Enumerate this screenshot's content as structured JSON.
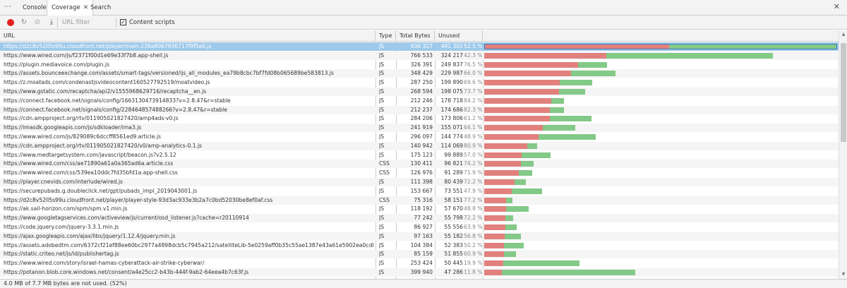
{
  "tabs": {
    "more_label": "⋯",
    "console": "Console",
    "coverage": "Coverage",
    "coverage_close": "✕",
    "search": "Search",
    "close_drawer": "✕"
  },
  "toolbar": {
    "url_filter_placeholder": "URL filter",
    "content_scripts_checked": true,
    "content_scripts_label": "Content scripts"
  },
  "columns": {
    "url": "URL",
    "type": "Type",
    "total": "Total Bytes",
    "unused": "Unused Bytes",
    "sort_indicator": "▼"
  },
  "rows": [
    {
      "url": "https://d2c8v52ll5s99u.cloudfront.net/player/main-238a8067936717f9f5a0.js",
      "type": "JS",
      "total": "936 327",
      "unused": "491 302",
      "pct": "52.5 %",
      "total_value": 936327,
      "unused_value": 491302
    },
    {
      "url": "https://www.wired.com/js/f2371f00d1e69e33f7b8.app-shell.js",
      "type": "JS",
      "total": "766 533",
      "unused": "324 217",
      "pct": "42.3 %",
      "total_value": 766533,
      "unused_value": 324217
    },
    {
      "url": "https://plugin.mediavoice.com/plugin.js",
      "type": "JS",
      "total": "326 391",
      "unused": "249 837",
      "pct": "76.5 %",
      "total_value": 326391,
      "unused_value": 249837
    },
    {
      "url": "https://assets.bounceexchange.com/assets/smart-tags/versioned/ijs_all_modules_ea79b8cbc7bf7fd08b065689be583813.js",
      "type": "JS",
      "total": "348 429",
      "unused": "229 987",
      "pct": "66.0 %",
      "total_value": 348429,
      "unused_value": 229987
    },
    {
      "url": "https://z.moatads.com/condenastjsvideocontent160527792519/moatvideo.js",
      "type": "JS",
      "total": "287 250",
      "unused": "199 890",
      "pct": "69.6 %",
      "total_value": 287250,
      "unused_value": 199890
    },
    {
      "url": "https://www.gstatic.com/recaptcha/api2/v1555968629716/recaptcha__en.js",
      "type": "JS",
      "total": "268 594",
      "unused": "198 075",
      "pct": "73.7 %",
      "total_value": 268594,
      "unused_value": 198075
    },
    {
      "url": "https://connect.facebook.net/signals/config/1663130473914833?v=2.8.47&r=stable",
      "type": "JS",
      "total": "212 246",
      "unused": "178 718",
      "pct": "84.2 %",
      "total_value": 212246,
      "unused_value": 178718
    },
    {
      "url": "https://connect.facebook.net/signals/config/228464857488266?v=2.8.47&r=stable",
      "type": "JS",
      "total": "212 237",
      "unused": "174 686",
      "pct": "82.3 %",
      "total_value": 212237,
      "unused_value": 174686
    },
    {
      "url": "https://cdn.ampproject.org/rtv/011905021827420/amp4ads-v0.js",
      "type": "JS",
      "total": "284 206",
      "unused": "173 806",
      "pct": "61.2 %",
      "total_value": 284206,
      "unused_value": 173806
    },
    {
      "url": "https://imasdk.googleapis.com/js/sdkloader/ima3.js",
      "type": "JS",
      "total": "241 919",
      "unused": "155 071",
      "pct": "64.1 %",
      "total_value": 241919,
      "unused_value": 155071
    },
    {
      "url": "https://www.wired.com/js/829089c6dccff8561ed9.article.js",
      "type": "JS",
      "total": "296 097",
      "unused": "144 774",
      "pct": "48.9 %",
      "total_value": 296097,
      "unused_value": 144774
    },
    {
      "url": "https://cdn.ampproject.org/rtv/011905021827420/v0/amp-analytics-0.1.js",
      "type": "JS",
      "total": "140 942",
      "unused": "114 069",
      "pct": "80.9 %",
      "total_value": 140942,
      "unused_value": 114069
    },
    {
      "url": "https://www.medtargetsystem.com/javascript/beacon.js?v2.5.12",
      "type": "JS",
      "total": "175 123",
      "unused": "99 889",
      "pct": "57.0 %",
      "total_value": 175123,
      "unused_value": 99889
    },
    {
      "url": "https://www.wired.com/css/ae71890a61a0a365ad6a.article.css",
      "type": "CSS",
      "total": "130 411",
      "unused": "96 821",
      "pct": "74.2 %",
      "total_value": 130411,
      "unused_value": 96821
    },
    {
      "url": "https://www.wired.com/css/539ea10ddc7fd35bfd1a.app-shell.css",
      "type": "CSS",
      "total": "126 976",
      "unused": "91 289",
      "pct": "71.9 %",
      "total_value": 126976,
      "unused_value": 91289
    },
    {
      "url": "https://player.cnevids.com/interlude/wired.js",
      "type": "JS",
      "total": "111 398",
      "unused": "80 439",
      "pct": "72.2 %",
      "total_value": 111398,
      "unused_value": 80439
    },
    {
      "url": "https://securepubads.g.doubleclick.net/gpt/pubads_impl_2019043001.js",
      "type": "JS",
      "total": "153 667",
      "unused": "73 551",
      "pct": "47.9 %",
      "total_value": 153667,
      "unused_value": 73551
    },
    {
      "url": "https://d2c8v52ll5s99u.cloudfront.net/player/player-style-93d3ac933e3b2a7c0bd52030be8ef0af.css",
      "type": "CSS",
      "total": "75 316",
      "unused": "58 151",
      "pct": "77.2 %",
      "total_value": 75316,
      "unused_value": 58151
    },
    {
      "url": "https://ak.sail-horizon.com/spm/spm.v1.min.js",
      "type": "JS",
      "total": "118 192",
      "unused": "57 670",
      "pct": "48.8 %",
      "total_value": 118192,
      "unused_value": 57670
    },
    {
      "url": "https://www.googletagservices.com/activeview/js/current/osd_listener.js?cache=r20110914",
      "type": "JS",
      "total": "77 242",
      "unused": "55 798",
      "pct": "72.2 %",
      "total_value": 77242,
      "unused_value": 55798
    },
    {
      "url": "https://code.jquery.com/jquery-3.3.1.min.js",
      "type": "JS",
      "total": "86 927",
      "unused": "55 556",
      "pct": "63.9 %",
      "total_value": 86927,
      "unused_value": 55556
    },
    {
      "url": "https://ajax.googleapis.com/ajax/libs/jquery/1.12.4/jquery.min.js",
      "type": "JS",
      "total": "97 163",
      "unused": "55 182",
      "pct": "56.8 %",
      "total_value": 97163,
      "unused_value": 55182
    },
    {
      "url": "https://assets.adobedtm.com/6372cf21ef88ee60bc2977a4898dcb5c7945a212/satelliteLib-5e0259aff0b35c55ae1387e43a61e5902ea0cdb6.js",
      "type": "JS",
      "total": "104 384",
      "unused": "52 383",
      "pct": "50.2 %",
      "total_value": 104384,
      "unused_value": 52383
    },
    {
      "url": "https://static.criteo.net/js/ld/publishertag.js",
      "type": "JS",
      "total": "85 159",
      "unused": "51 855",
      "pct": "60.9 %",
      "total_value": 85159,
      "unused_value": 51855
    },
    {
      "url": "https://www.wired.com/story/israel-hamas-cyberattack-air-strike-cyberwar/",
      "type": "JS",
      "total": "253 424",
      "unused": "50 445",
      "pct": "19.9 %",
      "total_value": 253424,
      "unused_value": 50445
    },
    {
      "url": "https://potanon.blob.core.windows.net/consent/a4e25cc2-b43b-444f-9ab2-64eea4b7c63f.js",
      "type": "JS",
      "total": "399 940",
      "unused": "47 286",
      "pct": "11.8 %",
      "total_value": 399940,
      "unused_value": 47286
    }
  ],
  "selected_row": 0,
  "status": "4.0 MB of 7.7 MB bytes are not used. (52%)",
  "colors": {
    "used": "#83c987",
    "unused": "#e1807d",
    "selected": "#9ec9ea",
    "record": "#e41f1f"
  }
}
